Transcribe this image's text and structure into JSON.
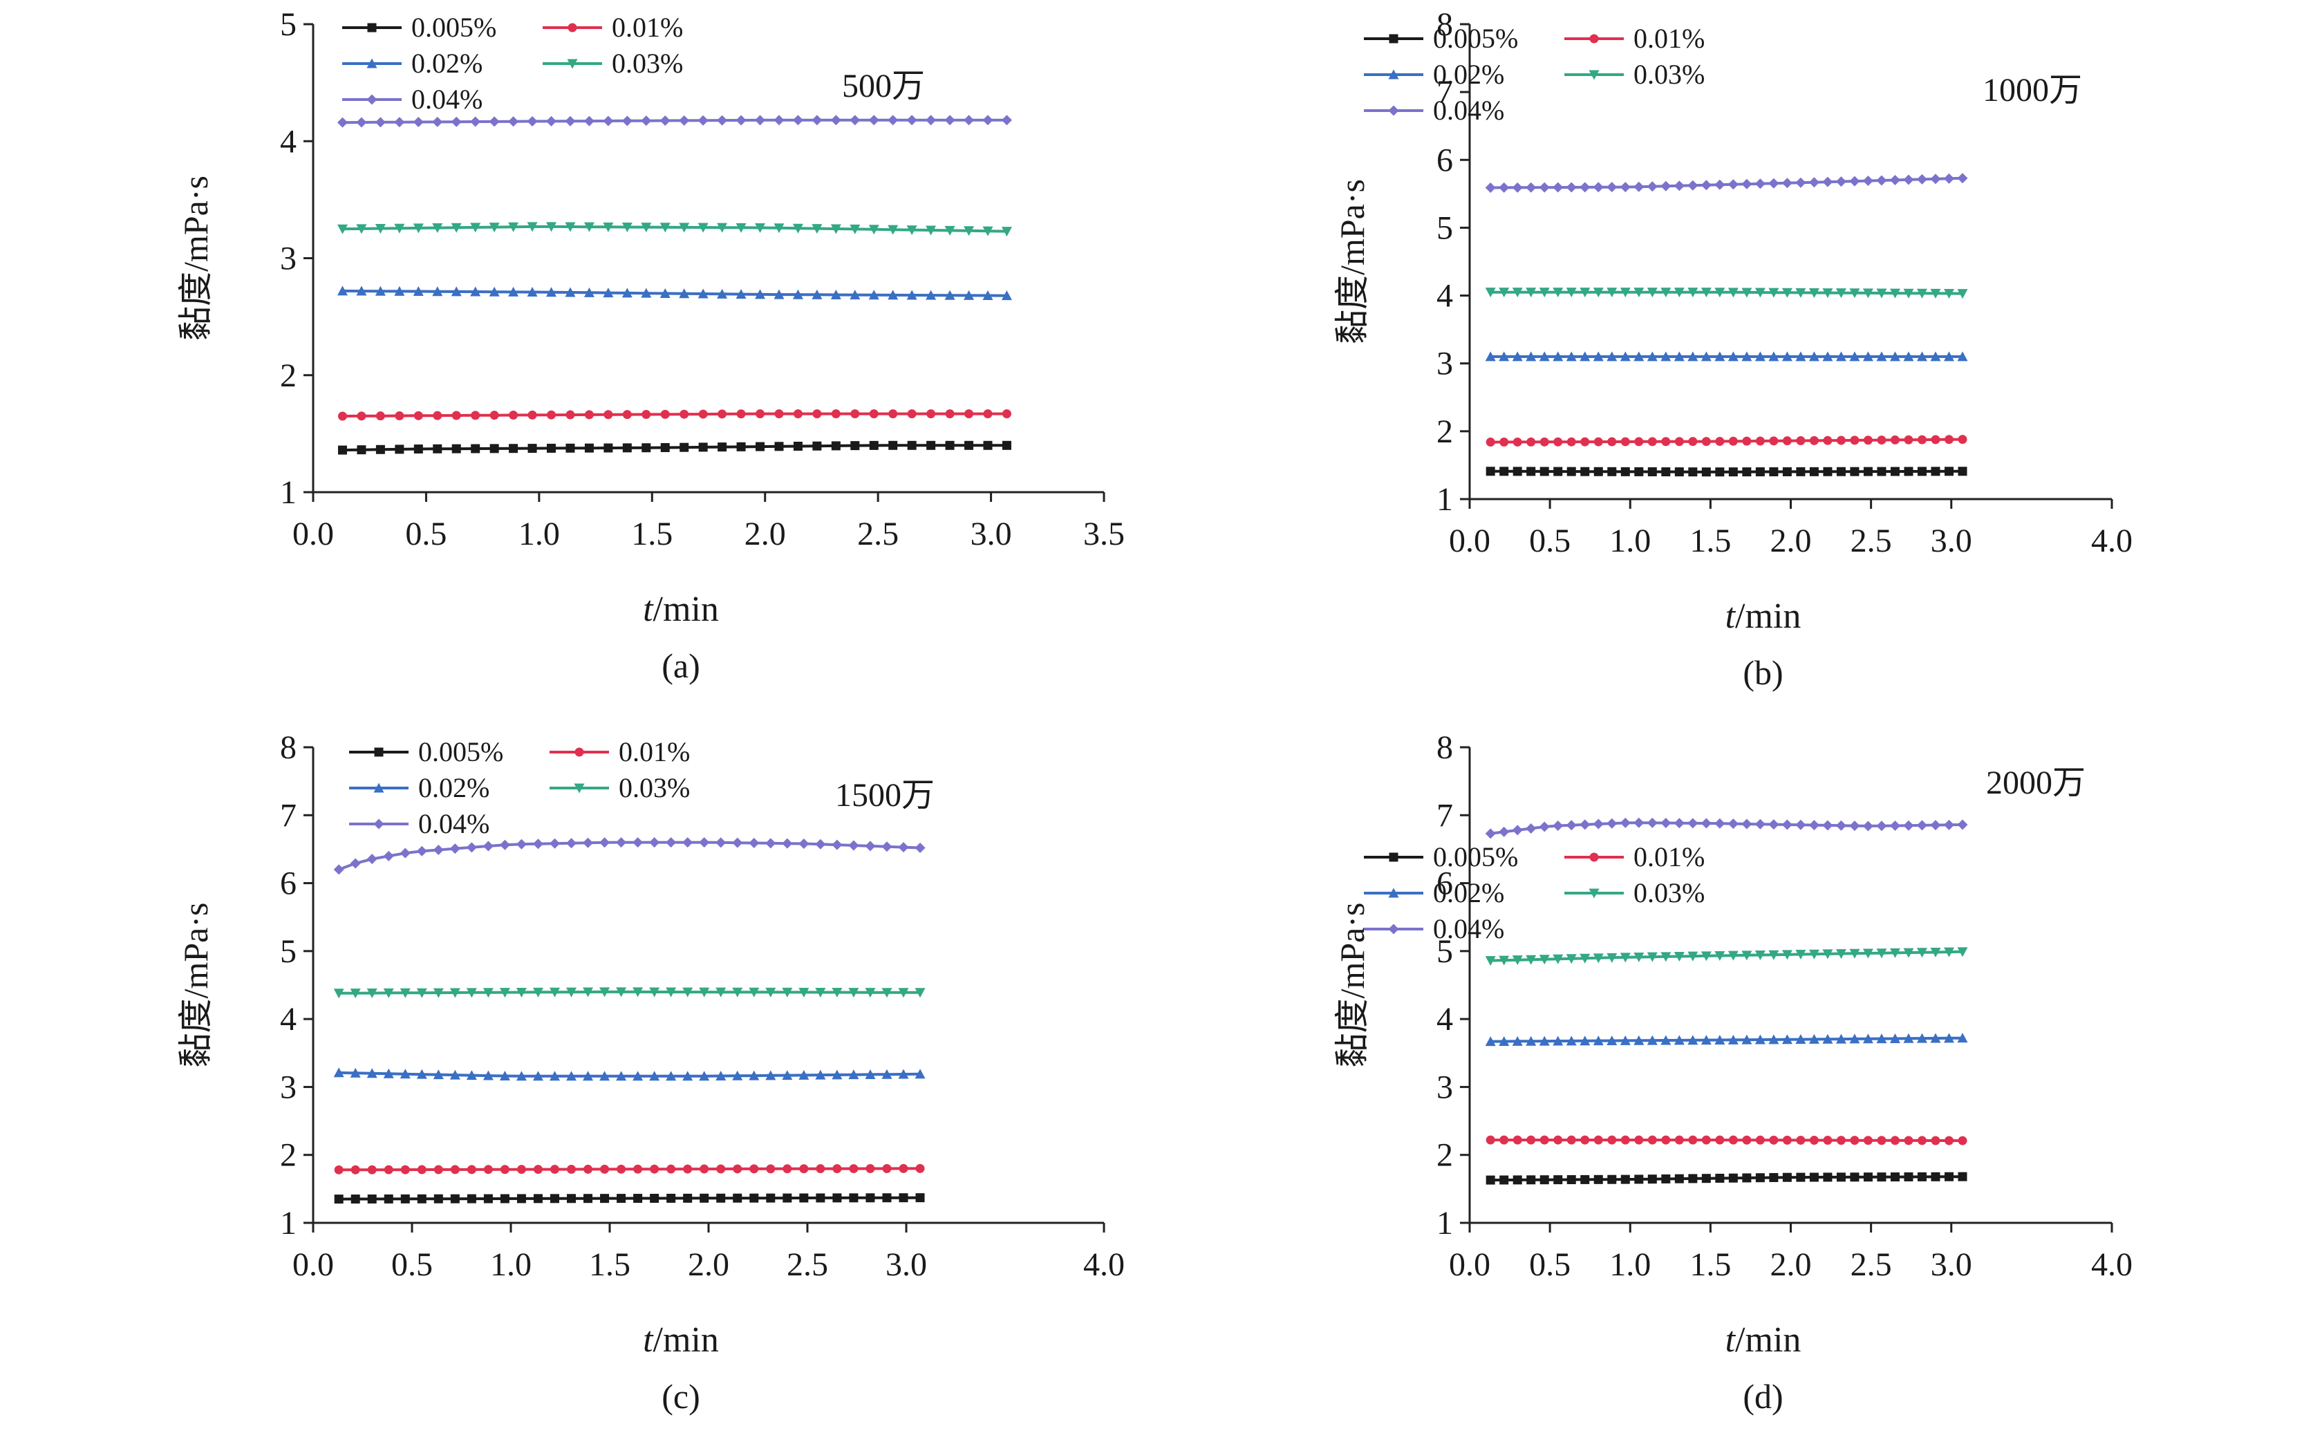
{
  "colors": {
    "0.005%": "#1a1a1a",
    "0.01%": "#e0304f",
    "0.02%": "#3a6fc4",
    "0.03%": "#33a884",
    "0.04%": "#7b72cc"
  },
  "chart_data": [
    {
      "type": "line",
      "panel_label": "(a)",
      "title_annotation": "500万",
      "xlabel_italic": "t",
      "xlabel_rest": "/min",
      "ylabel": "黏度/mPa·s",
      "xlim": [
        0,
        3.5
      ],
      "ylim": [
        1,
        5
      ],
      "xticks": [
        "0.0",
        "0.5",
        "1.0",
        "1.5",
        "2.0",
        "2.5",
        "3.0",
        "3.5"
      ],
      "yticks": [
        "1",
        "2",
        "3",
        "4",
        "5"
      ],
      "x_start": 0.13,
      "x_end": 3.07,
      "n_points": 36,
      "series": [
        {
          "name": "0.005%",
          "marker": "square",
          "anchors": [
            [
              0.13,
              1.36
            ],
            [
              0.5,
              1.37
            ],
            [
              1.5,
              1.38
            ],
            [
              2.5,
              1.4
            ],
            [
              3.07,
              1.4
            ]
          ]
        },
        {
          "name": "0.01%",
          "marker": "circle",
          "anchors": [
            [
              0.13,
              1.65
            ],
            [
              1.0,
              1.66
            ],
            [
              2.0,
              1.67
            ],
            [
              3.07,
              1.67
            ]
          ]
        },
        {
          "name": "0.02%",
          "marker": "triangle",
          "anchors": [
            [
              0.13,
              2.72
            ],
            [
              1.0,
              2.71
            ],
            [
              2.0,
              2.69
            ],
            [
              3.07,
              2.68
            ]
          ]
        },
        {
          "name": "0.03%",
          "marker": "triangle-down",
          "anchors": [
            [
              0.13,
              3.25
            ],
            [
              1.0,
              3.27
            ],
            [
              2.0,
              3.26
            ],
            [
              3.07,
              3.23
            ]
          ]
        },
        {
          "name": "0.04%",
          "marker": "diamond",
          "anchors": [
            [
              0.13,
              4.16
            ],
            [
              1.0,
              4.17
            ],
            [
              2.0,
              4.18
            ],
            [
              3.07,
              4.18
            ]
          ]
        }
      ]
    },
    {
      "type": "line",
      "panel_label": "(b)",
      "title_annotation": "1000万",
      "xlabel_italic": "t",
      "xlabel_rest": "/min",
      "ylabel": "黏度/mPa·s",
      "xlim": [
        0,
        4.0
      ],
      "ylim": [
        1,
        8
      ],
      "xticks": [
        "0.0",
        "0.5",
        "1.0",
        "1.5",
        "2.0",
        "2.5",
        "3.0",
        "4.0"
      ],
      "yticks": [
        "1",
        "2",
        "3",
        "4",
        "5",
        "6",
        "7",
        "8"
      ],
      "x_start": 0.13,
      "x_end": 3.07,
      "n_points": 36,
      "series": [
        {
          "name": "0.005%",
          "marker": "square",
          "anchors": [
            [
              0.13,
              1.41
            ],
            [
              1.5,
              1.4
            ],
            [
              3.07,
              1.41
            ]
          ]
        },
        {
          "name": "0.01%",
          "marker": "circle",
          "anchors": [
            [
              0.13,
              1.84
            ],
            [
              1.5,
              1.85
            ],
            [
              3.07,
              1.88
            ]
          ]
        },
        {
          "name": "0.02%",
          "marker": "triangle",
          "anchors": [
            [
              0.13,
              3.1
            ],
            [
              1.5,
              3.1
            ],
            [
              3.07,
              3.1
            ]
          ]
        },
        {
          "name": "0.03%",
          "marker": "triangle-down",
          "anchors": [
            [
              0.13,
              4.05
            ],
            [
              1.5,
              4.05
            ],
            [
              3.07,
              4.03
            ]
          ]
        },
        {
          "name": "0.04%",
          "marker": "diamond",
          "anchors": [
            [
              0.13,
              5.59
            ],
            [
              1.0,
              5.6
            ],
            [
              2.0,
              5.66
            ],
            [
              3.07,
              5.73
            ]
          ]
        }
      ]
    },
    {
      "type": "line",
      "panel_label": "(c)",
      "title_annotation": "1500万",
      "xlabel_italic": "t",
      "xlabel_rest": "/min",
      "ylabel": "黏度/mPa·s",
      "xlim": [
        0,
        4.0
      ],
      "ylim": [
        1,
        8
      ],
      "xticks": [
        "0.0",
        "0.5",
        "1.0",
        "1.5",
        "2.0",
        "2.5",
        "3.0",
        "4.0"
      ],
      "yticks": [
        "1",
        "2",
        "3",
        "4",
        "5",
        "6",
        "7",
        "8"
      ],
      "x_start": 0.13,
      "x_end": 3.07,
      "n_points": 36,
      "series": [
        {
          "name": "0.005%",
          "marker": "square",
          "anchors": [
            [
              0.13,
              1.35
            ],
            [
              1.5,
              1.36
            ],
            [
              3.07,
              1.37
            ]
          ]
        },
        {
          "name": "0.01%",
          "marker": "circle",
          "anchors": [
            [
              0.13,
              1.78
            ],
            [
              1.5,
              1.79
            ],
            [
              3.07,
              1.8
            ]
          ]
        },
        {
          "name": "0.02%",
          "marker": "triangle",
          "anchors": [
            [
              0.13,
              3.21
            ],
            [
              1.0,
              3.16
            ],
            [
              2.0,
              3.16
            ],
            [
              3.07,
              3.19
            ]
          ]
        },
        {
          "name": "0.03%",
          "marker": "triangle-down",
          "anchors": [
            [
              0.13,
              4.38
            ],
            [
              1.5,
              4.4
            ],
            [
              3.07,
              4.39
            ]
          ]
        },
        {
          "name": "0.04%",
          "marker": "diamond",
          "anchors": [
            [
              0.13,
              6.2
            ],
            [
              0.25,
              6.33
            ],
            [
              0.5,
              6.46
            ],
            [
              1.0,
              6.57
            ],
            [
              1.5,
              6.6
            ],
            [
              2.0,
              6.6
            ],
            [
              2.5,
              6.58
            ],
            [
              3.07,
              6.52
            ]
          ]
        }
      ]
    },
    {
      "type": "line",
      "panel_label": "(d)",
      "title_annotation": "2000万",
      "xlabel_italic": "t",
      "xlabel_rest": "/min",
      "ylabel": "黏度/mPa·s",
      "xlim": [
        0,
        4.0
      ],
      "ylim": [
        1,
        8
      ],
      "xticks": [
        "0.0",
        "0.5",
        "1.0",
        "1.5",
        "2.0",
        "2.5",
        "3.0",
        "4.0"
      ],
      "yticks": [
        "1",
        "2",
        "3",
        "4",
        "5",
        "6",
        "7",
        "8"
      ],
      "x_start": 0.13,
      "x_end": 3.07,
      "n_points": 36,
      "series": [
        {
          "name": "0.005%",
          "marker": "square",
          "anchors": [
            [
              0.13,
              1.63
            ],
            [
              1.0,
              1.64
            ],
            [
              2.0,
              1.67
            ],
            [
              3.07,
              1.68
            ]
          ]
        },
        {
          "name": "0.01%",
          "marker": "circle",
          "anchors": [
            [
              0.13,
              2.22
            ],
            [
              1.5,
              2.22
            ],
            [
              3.07,
              2.21
            ]
          ]
        },
        {
          "name": "0.02%",
          "marker": "triangle",
          "anchors": [
            [
              0.13,
              3.67
            ],
            [
              1.5,
              3.69
            ],
            [
              3.07,
              3.72
            ]
          ]
        },
        {
          "name": "0.03%",
          "marker": "triangle-down",
          "anchors": [
            [
              0.13,
              4.86
            ],
            [
              1.0,
              4.91
            ],
            [
              2.0,
              4.95
            ],
            [
              3.07,
              4.99
            ]
          ]
        },
        {
          "name": "0.04%",
          "marker": "diamond",
          "anchors": [
            [
              0.13,
              6.73
            ],
            [
              0.5,
              6.84
            ],
            [
              1.0,
              6.89
            ],
            [
              1.5,
              6.88
            ],
            [
              2.0,
              6.86
            ],
            [
              2.5,
              6.84
            ],
            [
              3.07,
              6.86
            ]
          ]
        }
      ]
    }
  ]
}
